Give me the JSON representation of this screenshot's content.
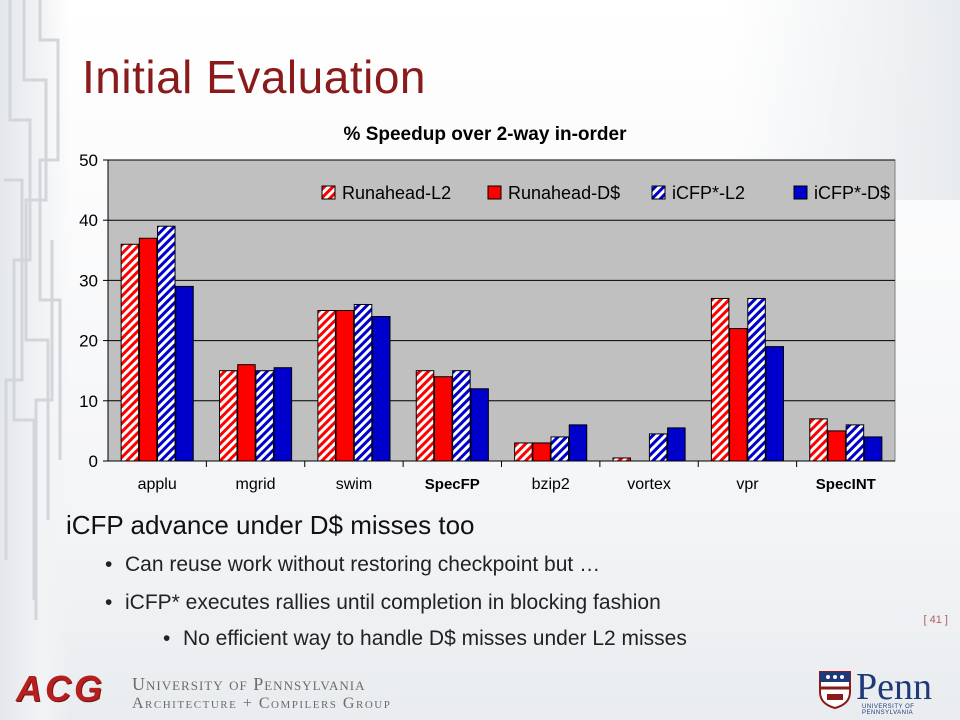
{
  "slide": {
    "title": "Initial Evaluation",
    "page_number": "[ 41 ]"
  },
  "bullets": {
    "main": "iCFP advance under D$ misses too",
    "sub1": "Can reuse work without restoring checkpoint but …",
    "sub2": "iCFP* executes rallies until completion in blocking fashion",
    "sub3": "No efficient way to handle D$ misses under L2 misses",
    "bullet_char": "•"
  },
  "footer": {
    "acg_logo": "ACG",
    "university": "University of Pennsylvania",
    "group": "Architecture + Compilers Group",
    "penn_logo": "Penn",
    "penn_sub": "UNIVERSITY OF PENNSYLVANIA"
  },
  "chart_data": {
    "type": "bar",
    "title": "% Speedup over 2-way in-order",
    "xlabel": "",
    "ylabel": "",
    "ylim": [
      0,
      50
    ],
    "yticks": [
      0,
      10,
      20,
      30,
      40,
      50
    ],
    "grid": true,
    "legend_position": "top-right",
    "categories": [
      "applu",
      "mgrid",
      "swim",
      "SpecFP",
      "bzip2",
      "vortex",
      "vpr",
      "SpecINT"
    ],
    "bold_categories": [
      "SpecFP",
      "SpecINT"
    ],
    "plot_background": "#c0c0c0",
    "series": [
      {
        "name": "Runahead-L2",
        "color": "#ff0000",
        "pattern": "hatched",
        "values": [
          36,
          15,
          25,
          15,
          3,
          0.5,
          27,
          7
        ]
      },
      {
        "name": "Runahead-D$",
        "color": "#ff0000",
        "pattern": "solid",
        "values": [
          37,
          16,
          25,
          14,
          3,
          0,
          22,
          5
        ]
      },
      {
        "name": "iCFP*-L2",
        "color": "#0000cc",
        "pattern": "hatched",
        "values": [
          39,
          15,
          26,
          15,
          4,
          4.5,
          27,
          6
        ]
      },
      {
        "name": "iCFP*-D$",
        "color": "#0000cc",
        "pattern": "solid",
        "values": [
          29,
          15.5,
          24,
          12,
          6,
          5.5,
          19,
          4
        ]
      }
    ]
  },
  "colors": {
    "title": "#8b1a1a",
    "acg_red": "#b51f1f",
    "penn_blue": "#1f3a78"
  }
}
